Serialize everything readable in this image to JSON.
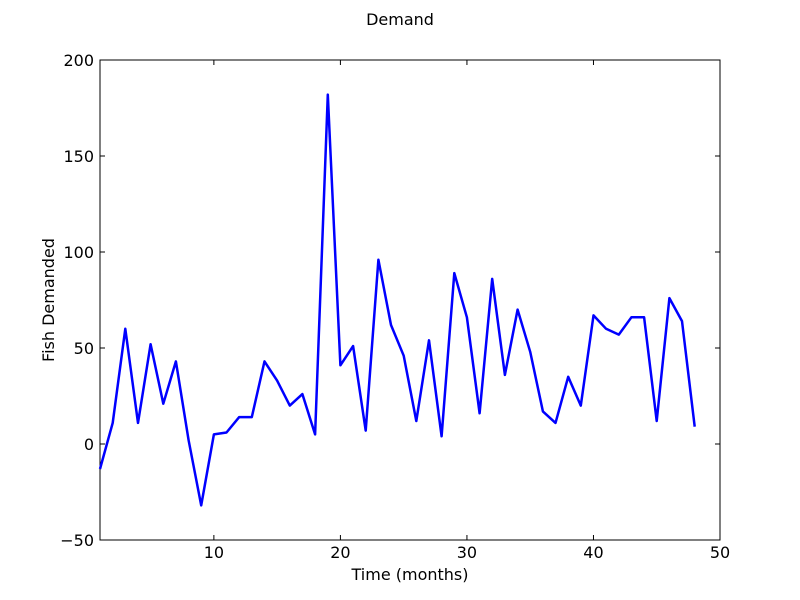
{
  "chart_data": {
    "type": "line",
    "title": "Demand",
    "xlabel": "Time (months)",
    "ylabel": "Fish Demanded",
    "xlim": [
      1,
      50
    ],
    "ylim": [
      -50,
      200
    ],
    "xticks": [
      10,
      20,
      30,
      40,
      50
    ],
    "yticks": [
      -50,
      0,
      50,
      100,
      150,
      200
    ],
    "xtick_labels": [
      "10",
      "20",
      "30",
      "40",
      "50"
    ],
    "ytick_labels": [
      "−50",
      "0",
      "50",
      "100",
      "150",
      "200"
    ],
    "grid": false,
    "line_color": "#0000ff",
    "series": [
      {
        "x": [
          1,
          2,
          3,
          4,
          5,
          6,
          7,
          8,
          9,
          10,
          11,
          12,
          13,
          14,
          15,
          16,
          17,
          18,
          19,
          20,
          21,
          22,
          23,
          24,
          25,
          26,
          27,
          28,
          29,
          30,
          31,
          32,
          33,
          34,
          35,
          36,
          37,
          38,
          39,
          40,
          41,
          42,
          43,
          44,
          45,
          46,
          47,
          48
        ],
        "values": [
          -13,
          11,
          60,
          11,
          52,
          21,
          43,
          2,
          -32,
          5,
          6,
          14,
          14,
          43,
          33,
          20,
          26,
          5,
          182,
          41,
          51,
          7,
          96,
          62,
          46,
          12,
          54,
          4,
          89,
          66,
          16,
          86,
          36,
          70,
          48,
          17,
          11,
          35,
          20,
          67,
          60,
          57,
          66,
          66,
          12,
          76,
          64,
          9
        ]
      }
    ]
  }
}
